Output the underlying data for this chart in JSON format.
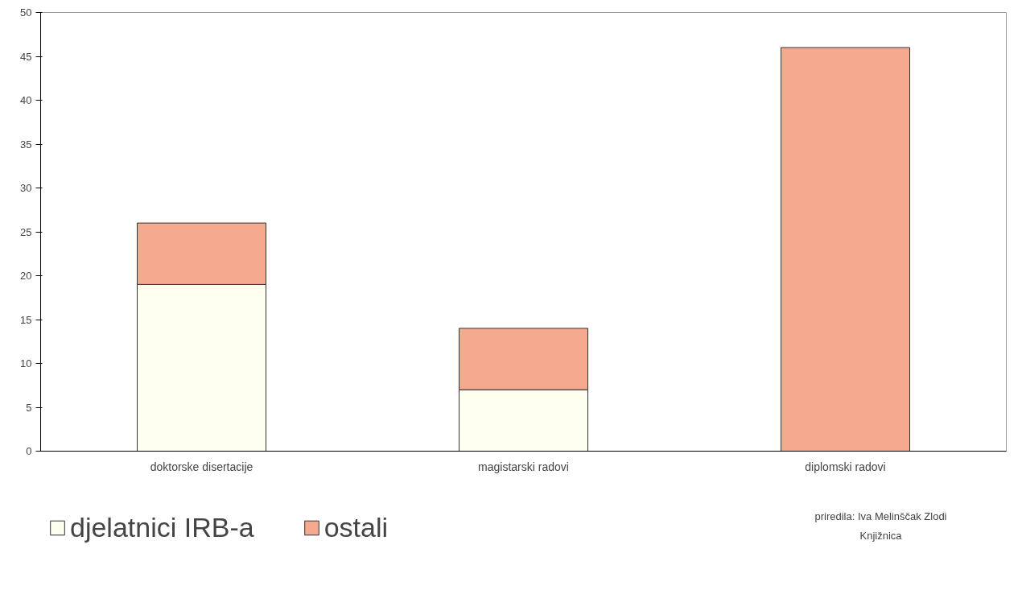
{
  "chart_data": {
    "type": "bar",
    "stacked": true,
    "categories": [
      "doktorske disertacije",
      "magistarski radovi",
      "diplomski radovi"
    ],
    "series": [
      {
        "name": "djelatnici IRB-a",
        "color": "#fffff0",
        "values": [
          19,
          7,
          0
        ]
      },
      {
        "name": "ostali",
        "color": "#f5a98f",
        "values": [
          7,
          7,
          46
        ]
      }
    ],
    "ylim": [
      0,
      50
    ],
    "yticks": [
      0,
      5,
      10,
      15,
      20,
      25,
      30,
      35,
      40,
      45,
      50
    ],
    "grid": false,
    "legend": "bottom",
    "annotations": [
      "priredila: Iva Melinščak Zlodi",
      "Knjižnica"
    ]
  }
}
